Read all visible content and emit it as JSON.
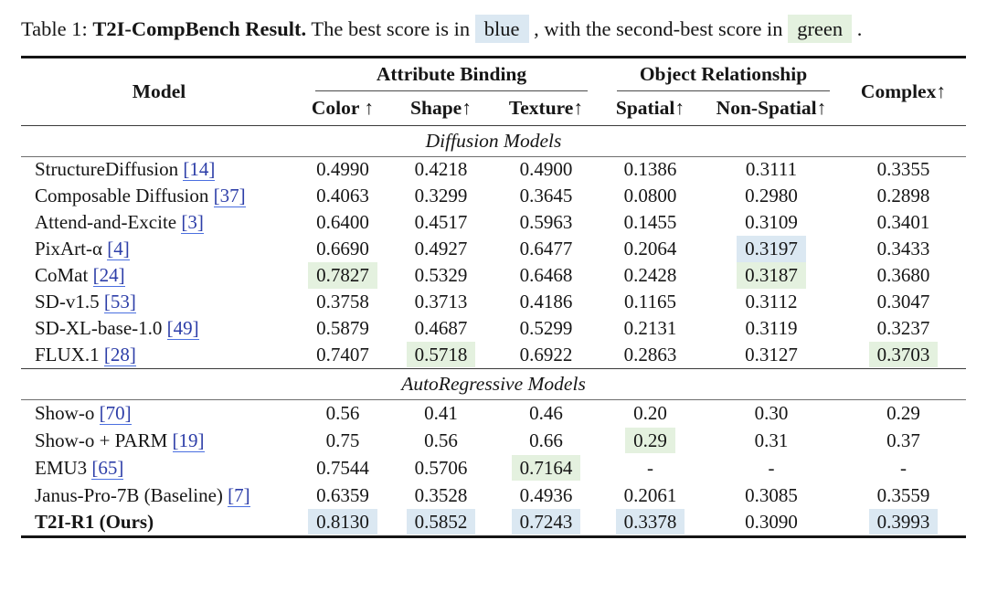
{
  "caption": {
    "prefix": "Table 1:",
    "title_bold": "T2I-CompBench Result.",
    "text_mid": "The best score is in",
    "blue_label": "blue",
    "text_mid2": ", with the second-best score in",
    "green_label": "green",
    "text_end": "."
  },
  "colors": {
    "best_highlight_blue": "#dbe8f2",
    "second_highlight_green": "#e4f1df",
    "citation_link_blue": "#2d3ea8"
  },
  "table": {
    "model_header": "Model",
    "complex_header": "Complex↑",
    "col_groups": [
      {
        "label": "Attribute Binding"
      },
      {
        "label": "Object Relationship"
      }
    ],
    "sub_headers": [
      "Color ↑",
      "Shape↑",
      "Texture↑",
      "Spatial↑",
      "Non-Spatial↑"
    ],
    "sections": [
      {
        "title": "Diffusion Models",
        "rows": [
          {
            "model": "StructureDiffusion",
            "ref": "[14]",
            "bold": false,
            "values": [
              "0.4990",
              "0.4218",
              "0.4900",
              "0.1386",
              "0.3111",
              "0.3355"
            ],
            "hl": [
              null,
              null,
              null,
              null,
              null,
              null
            ]
          },
          {
            "model": "Composable Diffusion",
            "ref": "[37]",
            "bold": false,
            "values": [
              "0.4063",
              "0.3299",
              "0.3645",
              "0.0800",
              "0.2980",
              "0.2898"
            ],
            "hl": [
              null,
              null,
              null,
              null,
              null,
              null
            ]
          },
          {
            "model": "Attend-and-Excite",
            "ref": "[3]",
            "bold": false,
            "values": [
              "0.6400",
              "0.4517",
              "0.5963",
              "0.1455",
              "0.3109",
              "0.3401"
            ],
            "hl": [
              null,
              null,
              null,
              null,
              null,
              null
            ]
          },
          {
            "model": "PixArt-α",
            "ref": "[4]",
            "bold": false,
            "values": [
              "0.6690",
              "0.4927",
              "0.6477",
              "0.2064",
              "0.3197",
              "0.3433"
            ],
            "hl": [
              null,
              null,
              null,
              null,
              "blue",
              null
            ]
          },
          {
            "model": "CoMat",
            "ref": "[24]",
            "bold": false,
            "values": [
              "0.7827",
              "0.5329",
              "0.6468",
              "0.2428",
              "0.3187",
              "0.3680"
            ],
            "hl": [
              "green",
              null,
              null,
              null,
              "green",
              null
            ]
          },
          {
            "model": "SD-v1.5",
            "ref": "[53]",
            "bold": false,
            "values": [
              "0.3758",
              "0.3713",
              "0.4186",
              "0.1165",
              "0.3112",
              "0.3047"
            ],
            "hl": [
              null,
              null,
              null,
              null,
              null,
              null
            ]
          },
          {
            "model": "SD-XL-base-1.0",
            "ref": "[49]",
            "bold": false,
            "values": [
              "0.5879",
              "0.4687",
              "0.5299",
              "0.2131",
              "0.3119",
              "0.3237"
            ],
            "hl": [
              null,
              null,
              null,
              null,
              null,
              null
            ]
          },
          {
            "model": "FLUX.1",
            "ref": "[28]",
            "bold": false,
            "values": [
              "0.7407",
              "0.5718",
              "0.6922",
              "0.2863",
              "0.3127",
              "0.3703"
            ],
            "hl": [
              null,
              "green",
              null,
              null,
              null,
              "green"
            ]
          }
        ]
      },
      {
        "title": "AutoRegressive Models",
        "rows": [
          {
            "model": "Show-o",
            "ref": "[70]",
            "bold": false,
            "values": [
              "0.56",
              "0.41",
              "0.46",
              "0.20",
              "0.30",
              "0.29"
            ],
            "hl": [
              null,
              null,
              null,
              null,
              null,
              null
            ]
          },
          {
            "model": "Show-o + PARM",
            "ref": "[19]",
            "bold": false,
            "values": [
              "0.75",
              "0.56",
              "0.66",
              "0.29",
              "0.31",
              "0.37"
            ],
            "hl": [
              null,
              null,
              null,
              "green",
              null,
              null
            ]
          },
          {
            "model": "EMU3",
            "ref": "[65]",
            "bold": false,
            "values": [
              "0.7544",
              "0.5706",
              "0.7164",
              "-",
              "-",
              "-"
            ],
            "hl": [
              null,
              null,
              "green",
              null,
              null,
              null
            ]
          },
          {
            "model": "Janus-Pro-7B (Baseline)",
            "ref": "[7]",
            "bold": false,
            "values": [
              "0.6359",
              "0.3528",
              "0.4936",
              "0.2061",
              "0.3085",
              "0.3559"
            ],
            "hl": [
              null,
              null,
              null,
              null,
              null,
              null
            ]
          },
          {
            "model": "T2I-R1 (Ours)",
            "ref": null,
            "bold": true,
            "values": [
              "0.8130",
              "0.5852",
              "0.7243",
              "0.3378",
              "0.3090",
              "0.3993"
            ],
            "hl": [
              "blue",
              "blue",
              "blue",
              "blue",
              null,
              "blue"
            ]
          }
        ]
      }
    ]
  }
}
